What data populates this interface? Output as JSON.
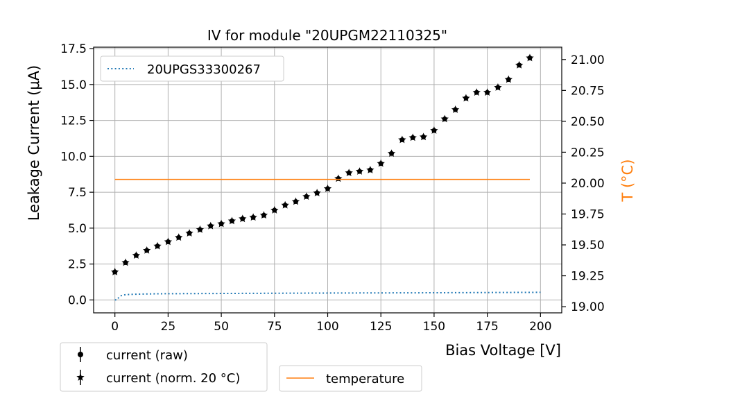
{
  "chart_data": {
    "type": "scatter",
    "title": "IV for module \"20UPGM22110325\"",
    "xlabel": "Bias Voltage [V]",
    "ylabel": "Leakage Current (μA)",
    "y2label": "T (°C)",
    "xlim": [
      -10,
      210
    ],
    "ylim": [
      -0.9,
      17.6
    ],
    "y2lim": [
      18.95,
      21.1
    ],
    "xticks": [
      0,
      25,
      50,
      75,
      100,
      125,
      150,
      175,
      200
    ],
    "yticks": [
      0.0,
      2.5,
      5.0,
      7.5,
      10.0,
      12.5,
      15.0,
      17.5
    ],
    "y2ticks": [
      19.0,
      19.25,
      19.5,
      19.75,
      20.0,
      20.25,
      20.5,
      20.75,
      21.0
    ],
    "grid": true,
    "colors": {
      "reference": "#1f77b4",
      "temperature": "#ff7f0e",
      "markers": "#000000"
    },
    "series": [
      {
        "name": "current (raw)",
        "kind": "errorbar-circle",
        "x": [
          0,
          5,
          10,
          15,
          20,
          25,
          30,
          35,
          40,
          45,
          50,
          55,
          60,
          65,
          70,
          75,
          80,
          85,
          90,
          95,
          100,
          105,
          110,
          115,
          120,
          125,
          130,
          135,
          140,
          145,
          150,
          155,
          160,
          165,
          170,
          175,
          180,
          185,
          190,
          195
        ],
        "y": [
          1.95,
          2.6,
          3.1,
          3.45,
          3.75,
          4.05,
          4.35,
          4.65,
          4.9,
          5.15,
          5.3,
          5.5,
          5.65,
          5.75,
          5.9,
          6.25,
          6.6,
          6.85,
          7.2,
          7.45,
          7.75,
          8.45,
          8.85,
          8.95,
          9.05,
          9.5,
          10.2,
          11.15,
          11.3,
          11.35,
          11.8,
          12.6,
          13.25,
          14.05,
          14.45,
          14.45,
          14.8,
          15.35,
          16.35,
          16.85
        ]
      },
      {
        "name": "current (norm. 20 °C)",
        "kind": "errorbar-star",
        "x": [
          0,
          5,
          10,
          15,
          20,
          25,
          30,
          35,
          40,
          45,
          50,
          55,
          60,
          65,
          70,
          75,
          80,
          85,
          90,
          95,
          100,
          105,
          110,
          115,
          120,
          125,
          130,
          135,
          140,
          145,
          150,
          155,
          160,
          165,
          170,
          175,
          180,
          185,
          190,
          195
        ],
        "y": [
          1.95,
          2.6,
          3.1,
          3.45,
          3.75,
          4.05,
          4.35,
          4.65,
          4.9,
          5.15,
          5.3,
          5.5,
          5.65,
          5.75,
          5.9,
          6.25,
          6.6,
          6.85,
          7.2,
          7.45,
          7.75,
          8.45,
          8.85,
          8.95,
          9.05,
          9.5,
          10.2,
          11.15,
          11.3,
          11.35,
          11.8,
          12.6,
          13.25,
          14.05,
          14.45,
          14.45,
          14.8,
          15.35,
          16.35,
          16.85
        ]
      },
      {
        "name": "20UPGS33300267",
        "kind": "dotted-line",
        "x": [
          0,
          1,
          2,
          3,
          5,
          10,
          20,
          50,
          100,
          150,
          200
        ],
        "y": [
          0.0,
          0.02,
          0.2,
          0.3,
          0.37,
          0.4,
          0.43,
          0.45,
          0.48,
          0.5,
          0.53
        ]
      },
      {
        "name": "temperature",
        "kind": "line-secondary",
        "x": [
          0,
          195
        ],
        "y": [
          20.03,
          20.03
        ]
      }
    ],
    "legend_top": {
      "entries": [
        "20UPGS33300267"
      ],
      "placement": "top-left"
    },
    "legend_bottom_left": {
      "entries": [
        "current (raw)",
        "current (norm. 20 °C)"
      ],
      "placement": "below-left"
    },
    "legend_bottom_right": {
      "entries": [
        "temperature"
      ],
      "placement": "below-center"
    }
  }
}
